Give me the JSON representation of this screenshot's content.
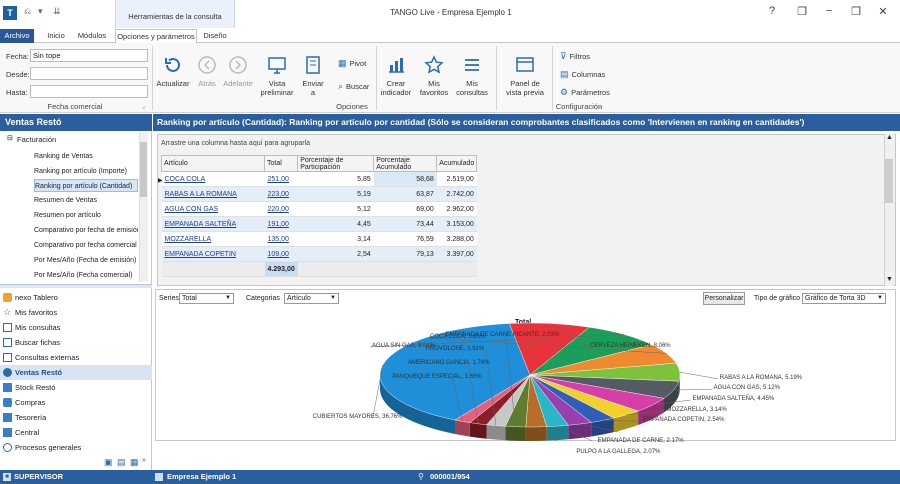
{
  "app": {
    "title": "TANGO  Live - Empresa Ejemplo 1",
    "contextual_header": "Herramientas de la consulta"
  },
  "window_controls": [
    "?",
    "−",
    "❐",
    "✕"
  ],
  "tabs": [
    {
      "label": "Archivo"
    },
    {
      "label": "Inicio"
    },
    {
      "label": "Módulos"
    },
    {
      "label": "Opciones y parámetros"
    },
    {
      "label": "Diseño"
    }
  ],
  "filters": {
    "fecha_label": "Fecha:",
    "fecha_value": "Sin tope",
    "desde_label": "Desde:",
    "desde_value": "",
    "hasta_label": "Hasta:",
    "hasta_value": "",
    "group_label": "Fecha comercial"
  },
  "ribbon": {
    "actualizar": "Actualizar",
    "atras": "Atrás",
    "adelante": "Adelante",
    "vista1": "Vista",
    "vista2": "preliminar",
    "enviar1": "Enviar",
    "enviar2": "a",
    "pivot": "Pivot",
    "buscar": "Buscar",
    "opciones_group": "Opciones",
    "crear1": "Crear",
    "crear2": "indicador",
    "misfav1": "Mis",
    "misfav2": "favoritos",
    "miscons1": "Mis",
    "miscons2": "consultas",
    "panel1": "Panel de",
    "panel2": "vista previa",
    "filtros": "Filtros",
    "columnas": "Columnas",
    "parametros": "Parámetros",
    "config_group": "Configuración"
  },
  "sidebar": {
    "header": "Ventas Restó",
    "tree_root": "Facturación",
    "tree_items": [
      "Ranking de Ventas",
      "Ranking por artículo (Importe)",
      "Ranking por artículo (Cantidad)",
      "Resumen de Ventas",
      "Resumen por artículo",
      "Comparativo por fecha de emisión",
      "Comparativo por fecha comercial",
      "Por Mes/Año (Fecha de emisión)",
      "Por Mes/Año (Fecha comercial)"
    ],
    "nav_items": [
      "nexo Tablero",
      "Mis favoritos",
      "Mis consultas",
      "Buscar fichas",
      "Consultas externas",
      "Ventas Restó",
      "Stock Restó",
      "Compras",
      "Tesorería",
      "Central",
      "Procesos generales"
    ]
  },
  "main": {
    "title": "Ranking por artículo (Cantidad): Ranking por artículo por cantidad (Sólo se consideran comprobantes clasificados como 'Intervienen en ranking en cantidades')",
    "group_hint": "Arrastre una columna hasta aquí para agruparla",
    "columns": [
      "Artículo",
      "Total",
      "Porcentaje de Participación",
      "Porcentaje Acumulado",
      "Acumulado"
    ],
    "rows": [
      [
        "COCA COLA",
        "251,00",
        "5,85",
        "58,68",
        "2.519,00"
      ],
      [
        "RABAS A LA ROMANA",
        "223,00",
        "5,19",
        "63,87",
        "2.742,00"
      ],
      [
        "AGUA CON GAS",
        "220,00",
        "5,12",
        "69,00",
        "2.962,00"
      ],
      [
        "EMPANADA SALTEÑA",
        "191,00",
        "4,45",
        "73,44",
        "3.153,00"
      ],
      [
        "MOZZARELLA",
        "135,00",
        "3,14",
        "76,59",
        "3.288,00"
      ],
      [
        "EMPANADA COPETIN",
        "109,00",
        "2,54",
        "79,13",
        "3.397,00"
      ]
    ],
    "total": "4.293,00"
  },
  "chart_controls": {
    "series_label": "Series",
    "series_value": "Total",
    "categorias_label": "Categorias",
    "categorias_value": "Artículo",
    "personalizar": "Personalizar",
    "tipo_label": "Tipo de gráfico",
    "tipo_value": "Gráfico de Torta 3D"
  },
  "chart_data": {
    "type": "pie",
    "title": "Total",
    "slices": [
      {
        "label": "CUBIERTOS MAYORES",
        "value": 36.76,
        "color": "#1e8fd8"
      },
      {
        "label": "CERVEZA HEINEKEN",
        "value": 8.06,
        "color": "#e8333b"
      },
      {
        "label": "AGUA SIN GAS",
        "value": 8.01,
        "color": "#1a9e5a"
      },
      {
        "label": "COCA COLA",
        "value": 5.85,
        "color": "#f08a2e"
      },
      {
        "label": "RABAS A LA ROMANA",
        "value": 5.19,
        "color": "#7ec13a"
      },
      {
        "label": "AGUA CON GAS",
        "value": 5.12,
        "color": "#555b63"
      },
      {
        "label": "EMPANADA SALTEÑA",
        "value": 4.45,
        "color": "#d63fa8"
      },
      {
        "label": "MOZZARELLA",
        "value": 3.14,
        "color": "#f2d12a"
      },
      {
        "label": "EMPANADA COPETIN",
        "value": 2.54,
        "color": "#2f5fb8"
      },
      {
        "label": "PINTXO DE JAMÓN CRUDO, RUCULA,",
        "value": 2.42,
        "color": "#9a3fb0"
      },
      {
        "label": "EMPANADA DE CARNE",
        "value": 2.17,
        "color": "#28b7c9"
      },
      {
        "label": "PULPO A LA GALLEGA",
        "value": 2.07,
        "color": "#b86e2a"
      },
      {
        "label": "EMPANADA DE CARNE PICANTE",
        "value": 2.03,
        "color": "#5f7d2d"
      },
      {
        "label": "PROVOLONE",
        "value": 1.91,
        "color": "#c7c7c7"
      },
      {
        "label": "AMERICANO GANCIA",
        "value": 1.76,
        "color": "#8a1f2a"
      },
      {
        "label": "PANQUEQUE ESPECIAL",
        "value": 1.65,
        "color": "#e85f7a"
      }
    ],
    "visible_labels": [
      "COCA COLA, 5.85%",
      "AGUA SIN GAS, 8.01%",
      "CERVEZA HEINEKEN, 8.06%",
      "CUBIERTOS MAYORES, 36.76%",
      "RABAS A LA ROMANA, 5.19%",
      "AGUA CON GAS, 5.12%",
      "EMPANADA SALTEÑA, 4.45%",
      "MOZZARELLA, 3.14%",
      "EMPANADA COPETIN, 2.54%",
      "PINTXO DE JAMÓN CRUDO, RUCULA, 2.42%",
      "EMPANADA DE CARNE, 2.17%",
      "PULPO A LA GALLEGA, 2.07%",
      "EMPANADA DE CARNE PICANTE, 2.03%",
      "PROVOLONE, 1.91%",
      "AMERICANO GANCIA, 1.76%",
      "PANQUEQUE ESPECIAL, 1.65%"
    ]
  },
  "status": {
    "user": "SUPERVISOR",
    "company": "Empresa Ejemplo 1",
    "record": "000001/954"
  }
}
